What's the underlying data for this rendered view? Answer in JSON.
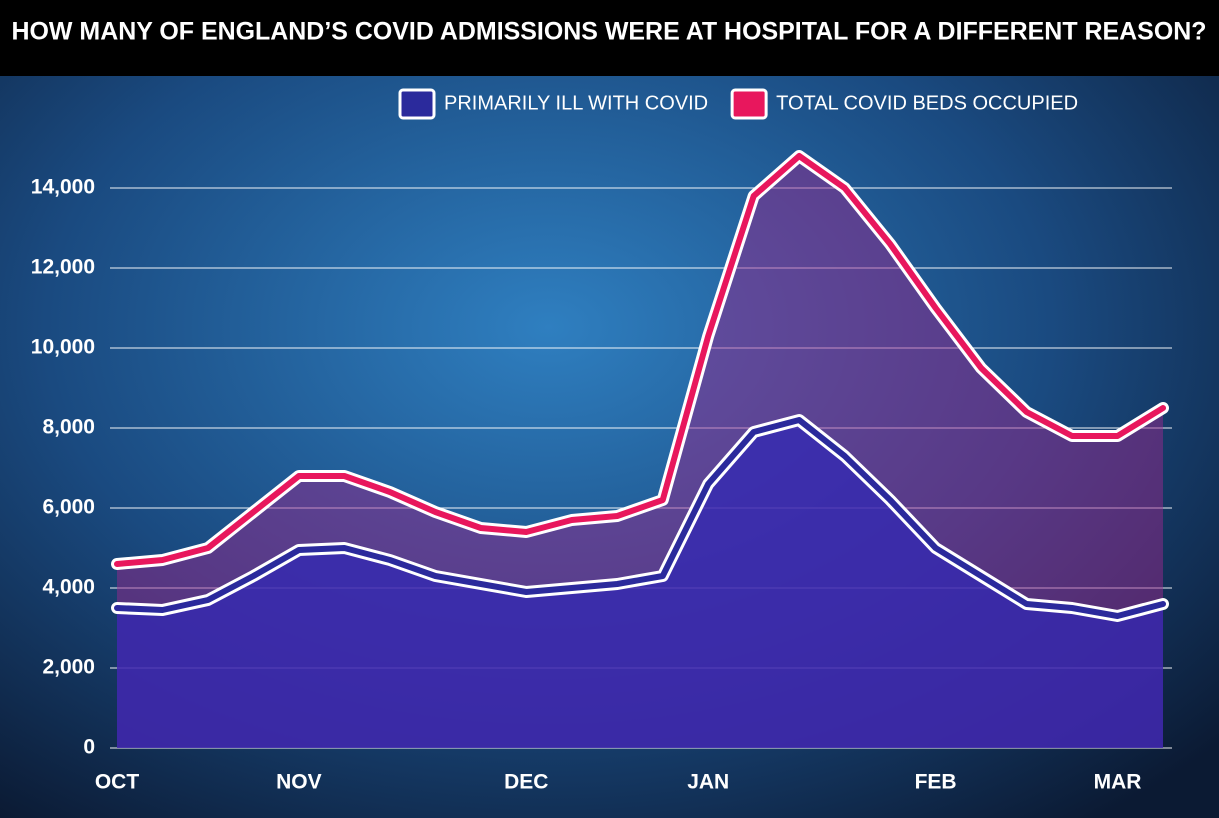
{
  "chart_data": {
    "type": "area-line",
    "title": "HOW MANY OF ENGLAND’S COVID ADMISSIONS WERE AT HOSPITAL FOR A DIFFERENT REASON?",
    "categories": [
      "OCT",
      null,
      null,
      null,
      "NOV",
      null,
      null,
      null,
      null,
      "DEC",
      null,
      null,
      null,
      "JAN",
      null,
      null,
      null,
      null,
      "FEB",
      null,
      null,
      null,
      "MAR",
      null
    ],
    "series": [
      {
        "name": "PRIMARILY ILL WITH COVID",
        "color": "#2b2a9c",
        "values": [
          3500,
          3450,
          3700,
          4300,
          4950,
          5000,
          4700,
          4300,
          4100,
          3900,
          4000,
          4100,
          4300,
          6600,
          7900,
          8200,
          7300,
          6200,
          5000,
          4300,
          3600,
          3500,
          3300,
          3600
        ]
      },
      {
        "name": "TOTAL COVID BEDS OCCUPIED",
        "color": "#e8175d",
        "values": [
          4600,
          4700,
          5000,
          5900,
          6800,
          6800,
          6400,
          5900,
          5500,
          5400,
          5700,
          5800,
          6200,
          10300,
          13800,
          14800,
          14000,
          12600,
          11000,
          9500,
          8400,
          7800,
          7800,
          8500
        ]
      }
    ],
    "ylim": [
      0,
      15000
    ],
    "yticks": [
      0,
      {
        "value": 2000,
        "label": "2,000"
      },
      {
        "value": 4000,
        "label": "4,000"
      },
      {
        "value": 6000,
        "label": "6,000"
      },
      {
        "value": 8000,
        "label": "8,000"
      },
      {
        "value": 10000,
        "label": "10,000"
      },
      {
        "value": 12000,
        "label": "12,000"
      },
      {
        "value": 14000,
        "label": "14,000"
      }
    ],
    "grid": true,
    "legend": "top-right"
  }
}
